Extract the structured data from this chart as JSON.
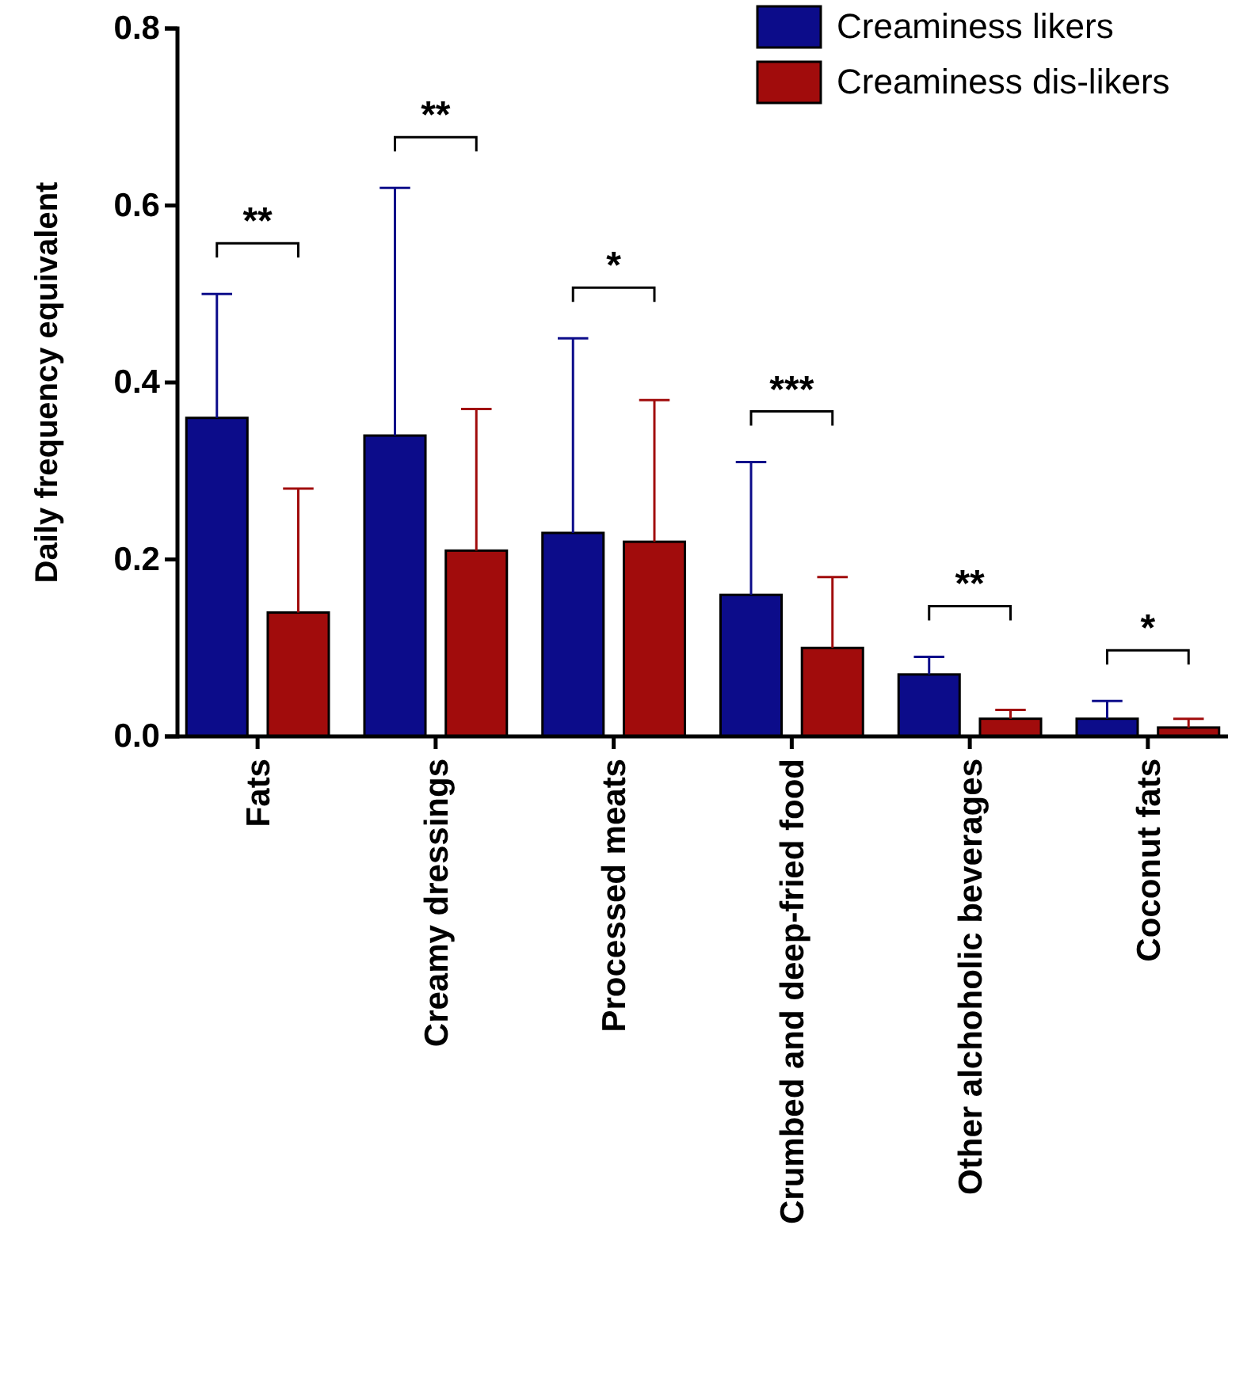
{
  "chart_data": {
    "type": "bar",
    "ylabel": "Daily frequency equivalent",
    "categories": [
      "Fats",
      "Creamy dressings",
      "Processed meats",
      "Crumbed and deep-fried food",
      "Other alchoholic beverages",
      "Coconut fats"
    ],
    "series": [
      {
        "name": "Creaminess likers",
        "color": "#0c0c8a",
        "values": [
          0.36,
          0.34,
          0.23,
          0.16,
          0.07,
          0.02
        ],
        "errors": [
          [
            0.36,
            0.5
          ],
          [
            0.34,
            0.62
          ],
          [
            0.23,
            0.45
          ],
          [
            0.16,
            0.31
          ],
          [
            0.07,
            0.09
          ],
          [
            0.02,
            0.04
          ]
        ]
      },
      {
        "name": "Creaminess dis-likers",
        "color": "#a10c0c",
        "values": [
          0.14,
          0.21,
          0.22,
          0.1,
          0.02,
          0.01
        ],
        "errors": [
          [
            0.14,
            0.28
          ],
          [
            0.21,
            0.37
          ],
          [
            0.22,
            0.38
          ],
          [
            0.1,
            0.18
          ],
          [
            0.02,
            0.03
          ],
          [
            0.01,
            0.02
          ]
        ]
      }
    ],
    "ylim": [
      0,
      0.8
    ],
    "yticks": [
      {
        "value": 0,
        "label": "0.0"
      },
      {
        "value": 0.2,
        "label": "0.2"
      },
      {
        "value": 0.4,
        "label": "0.4"
      },
      {
        "value": 0.6,
        "label": "0.6"
      },
      {
        "value": 0.8,
        "label": "0.8"
      }
    ],
    "annotations": [
      "**",
      "**",
      "*",
      "***",
      "**",
      "*"
    ],
    "grid": false,
    "legend": "top right"
  }
}
